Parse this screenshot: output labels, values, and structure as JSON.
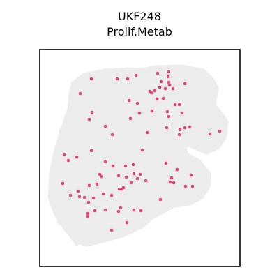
{
  "chart_data": {
    "type": "scatter",
    "title": "UKF248",
    "subtitle": "Prolif.Metab",
    "xlabel": "",
    "ylabel": "",
    "axes_visible": false,
    "colors": {
      "tissue": "#ececec",
      "highlight": "#e0457b",
      "frame": "#000000"
    },
    "points": [
      [
        242,
        103
      ],
      [
        226,
        105
      ],
      [
        241,
        110
      ],
      [
        195,
        108
      ],
      [
        183,
        113
      ],
      [
        168,
        113
      ],
      [
        131,
        113
      ],
      [
        231,
        117
      ],
      [
        242,
        118
      ],
      [
        243,
        122
      ],
      [
        265,
        120
      ],
      [
        229,
        125
      ],
      [
        222,
        130
      ],
      [
        115,
        134
      ],
      [
        237,
        127
      ],
      [
        248,
        127
      ],
      [
        215,
        131
      ],
      [
        217,
        133
      ],
      [
        185,
        144
      ],
      [
        225,
        142
      ],
      [
        234,
        141
      ],
      [
        197,
        148
      ],
      [
        251,
        150
      ],
      [
        257,
        150
      ],
      [
        132,
        161
      ],
      [
        200,
        162
      ],
      [
        218,
        159
      ],
      [
        240,
        160
      ],
      [
        261,
        162
      ],
      [
        242,
        167
      ],
      [
        187,
        170
      ],
      [
        128,
        171
      ],
      [
        151,
        181
      ],
      [
        265,
        183
      ],
      [
        272,
        182
      ],
      [
        258,
        186
      ],
      [
        239,
        183
      ],
      [
        211,
        190
      ],
      [
        161,
        193
      ],
      [
        257,
        193
      ],
      [
        301,
        192
      ],
      [
        315,
        188
      ],
      [
        204,
        215
      ],
      [
        131,
        216
      ],
      [
        92,
        222
      ],
      [
        110,
        225
      ],
      [
        98,
        230
      ],
      [
        151,
        232
      ],
      [
        238,
        234
      ],
      [
        162,
        238
      ],
      [
        191,
        236
      ],
      [
        180,
        238
      ],
      [
        201,
        250
      ],
      [
        254,
        243
      ],
      [
        170,
        252
      ],
      [
        209,
        259
      ],
      [
        143,
        250
      ],
      [
        145,
        253
      ],
      [
        192,
        249
      ],
      [
        246,
        255
      ],
      [
        274,
        251
      ],
      [
        181,
        254
      ],
      [
        197,
        256
      ],
      [
        244,
        261
      ],
      [
        139,
        264
      ],
      [
        249,
        262
      ],
      [
        188,
        262
      ],
      [
        90,
        263
      ],
      [
        128,
        266
      ],
      [
        266,
        267
      ],
      [
        112,
        274
      ],
      [
        177,
        269
      ],
      [
        175,
        271
      ],
      [
        171,
        271
      ],
      [
        148,
        278
      ],
      [
        276,
        267
      ],
      [
        101,
        280
      ],
      [
        121,
        283
      ],
      [
        134,
        284
      ],
      [
        114,
        282
      ],
      [
        160,
        280
      ],
      [
        127,
        290
      ],
      [
        230,
        286
      ],
      [
        173,
        298
      ],
      [
        136,
        302
      ],
      [
        151,
        301
      ],
      [
        192,
        301
      ],
      [
        170,
        303
      ],
      [
        202,
        302
      ],
      [
        126,
        306
      ],
      [
        126,
        310
      ],
      [
        182,
        319
      ],
      [
        160,
        330
      ]
    ]
  }
}
